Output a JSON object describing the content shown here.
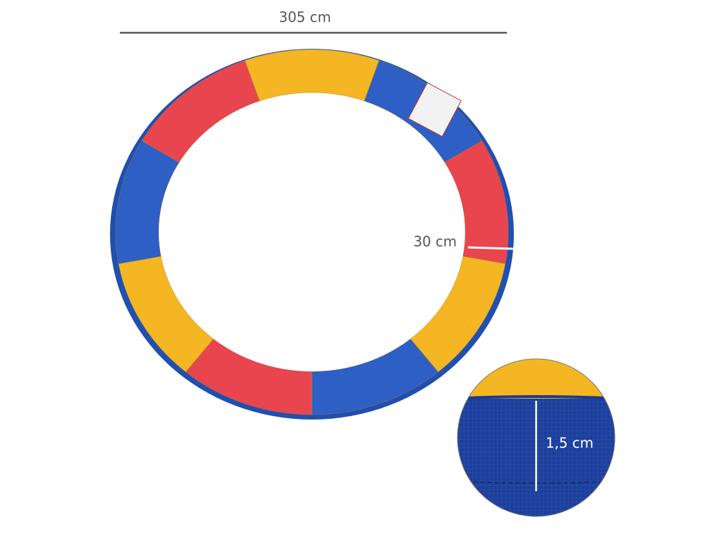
{
  "dimensions": {
    "diameter": "305 cm",
    "width": "30 cm",
    "thickness": "1,5 cm"
  }
}
